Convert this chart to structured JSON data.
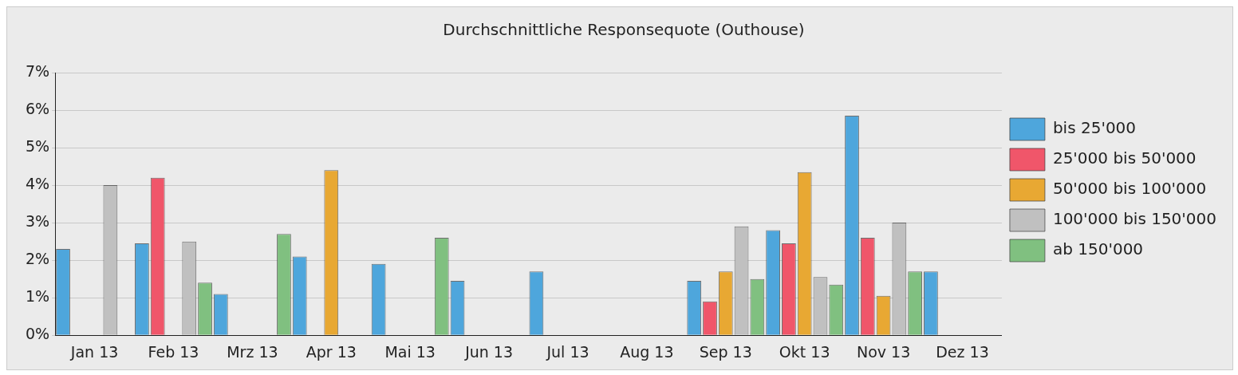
{
  "chart_data": {
    "type": "bar",
    "title": "Durchschnittliche Responsequote (Outhouse)",
    "categories": [
      "Jan 13",
      "Feb 13",
      "Mrz 13",
      "Apr 13",
      "Mai 13",
      "Jun 13",
      "Jul 13",
      "Aug 13",
      "Sep 13",
      "Okt 13",
      "Nov 13",
      "Dez 13"
    ],
    "series": [
      {
        "name": "bis 25'000",
        "color": "#4ea6dc",
        "values": [
          2.3,
          2.45,
          1.1,
          2.1,
          1.9,
          1.45,
          1.7,
          null,
          1.45,
          2.8,
          5.85,
          1.7
        ]
      },
      {
        "name": "25'000 bis 50'000",
        "color": "#f0566a",
        "values": [
          null,
          4.2,
          null,
          null,
          null,
          null,
          null,
          null,
          0.9,
          2.45,
          2.6,
          null
        ]
      },
      {
        "name": "50'000 bis 100'000",
        "color": "#e8a833",
        "values": [
          null,
          null,
          null,
          4.4,
          null,
          null,
          null,
          null,
          1.7,
          4.35,
          1.05,
          null
        ]
      },
      {
        "name": "100'000 bis 150'000",
        "color": "#c0c0c0",
        "values": [
          4.0,
          2.5,
          null,
          null,
          null,
          null,
          null,
          null,
          2.9,
          1.55,
          3.0,
          null
        ]
      },
      {
        "name": "ab 150'000",
        "color": "#80c080",
        "values": [
          null,
          1.4,
          2.7,
          null,
          2.6,
          null,
          null,
          null,
          1.5,
          1.35,
          1.7,
          null
        ]
      }
    ],
    "ylim": [
      0,
      7
    ],
    "yticks": [
      {
        "value": 0,
        "label": "0%"
      },
      {
        "value": 1,
        "label": "1%"
      },
      {
        "value": 2,
        "label": "2%"
      },
      {
        "value": 3,
        "label": "3%"
      },
      {
        "value": 4,
        "label": "4%"
      },
      {
        "value": 5,
        "label": "5%"
      },
      {
        "value": 6,
        "label": "6%"
      },
      {
        "value": 7,
        "label": "7%"
      }
    ],
    "grid": "y",
    "legend": "right"
  }
}
